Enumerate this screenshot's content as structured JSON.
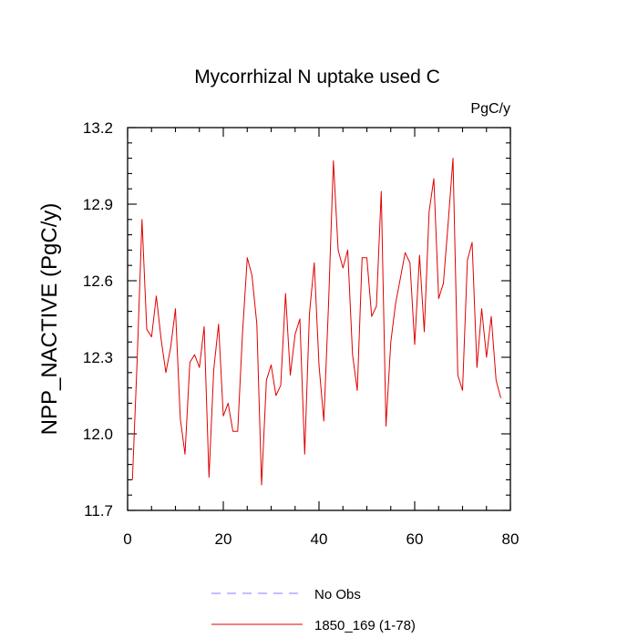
{
  "chart_data": {
    "type": "line",
    "title": "Mycorrhizal N uptake used C",
    "units_label": "PgC/y",
    "ylabel": "NPP_NACTIVE  (PgC/y)",
    "xlabel": "",
    "xlim": [
      0,
      80
    ],
    "ylim": [
      11.7,
      13.2
    ],
    "x_ticks": [
      0,
      20,
      40,
      60,
      80
    ],
    "y_ticks": [
      11.7,
      12.0,
      12.3,
      12.6,
      12.9,
      13.2
    ],
    "x_tick_labels": [
      "0",
      "20",
      "40",
      "60",
      "80"
    ],
    "y_tick_labels": [
      "11.7",
      "12.0",
      "12.3",
      "12.6",
      "12.9",
      "13.2"
    ],
    "series": [
      {
        "name": "1850_169 (1-78)",
        "color": "#e00000",
        "dash": "solid",
        "x": [
          1,
          2,
          3,
          4,
          5,
          6,
          7,
          8,
          9,
          10,
          11,
          12,
          13,
          14,
          15,
          16,
          17,
          18,
          19,
          20,
          21,
          22,
          23,
          24,
          25,
          26,
          27,
          28,
          29,
          30,
          31,
          32,
          33,
          34,
          35,
          36,
          37,
          38,
          39,
          40,
          41,
          42,
          43,
          44,
          45,
          46,
          47,
          48,
          49,
          50,
          51,
          52,
          53,
          54,
          55,
          56,
          57,
          58,
          59,
          60,
          61,
          62,
          63,
          64,
          65,
          66,
          67,
          68,
          69,
          70,
          71,
          72,
          73,
          74,
          75,
          76,
          77,
          78
        ],
        "values": [
          11.82,
          12.29,
          12.84,
          12.41,
          12.38,
          12.54,
          12.37,
          12.24,
          12.34,
          12.49,
          12.06,
          11.92,
          12.28,
          12.31,
          12.26,
          12.42,
          11.83,
          12.25,
          12.43,
          12.07,
          12.12,
          12.01,
          12.01,
          12.39,
          12.69,
          12.62,
          12.43,
          11.8,
          12.21,
          12.27,
          12.15,
          12.19,
          12.55,
          12.23,
          12.39,
          12.45,
          11.92,
          12.47,
          12.67,
          12.27,
          12.05,
          12.51,
          13.07,
          12.72,
          12.65,
          12.72,
          12.31,
          12.17,
          12.69,
          12.69,
          12.46,
          12.5,
          12.95,
          12.03,
          12.36,
          12.51,
          12.61,
          12.71,
          12.67,
          12.35,
          12.7,
          12.4,
          12.87,
          13.0,
          12.53,
          12.59,
          12.83,
          13.08,
          12.23,
          12.17,
          12.68,
          12.75,
          12.26,
          12.49,
          12.3,
          12.46,
          12.21,
          12.14
        ]
      },
      {
        "name": "No Obs",
        "color": "#8080ff",
        "dash": "dashed",
        "x": [],
        "values": []
      }
    ],
    "legend": [
      "No Obs",
      "1850_169 (1-78)"
    ],
    "legend_position": "bottom",
    "grid": false
  }
}
